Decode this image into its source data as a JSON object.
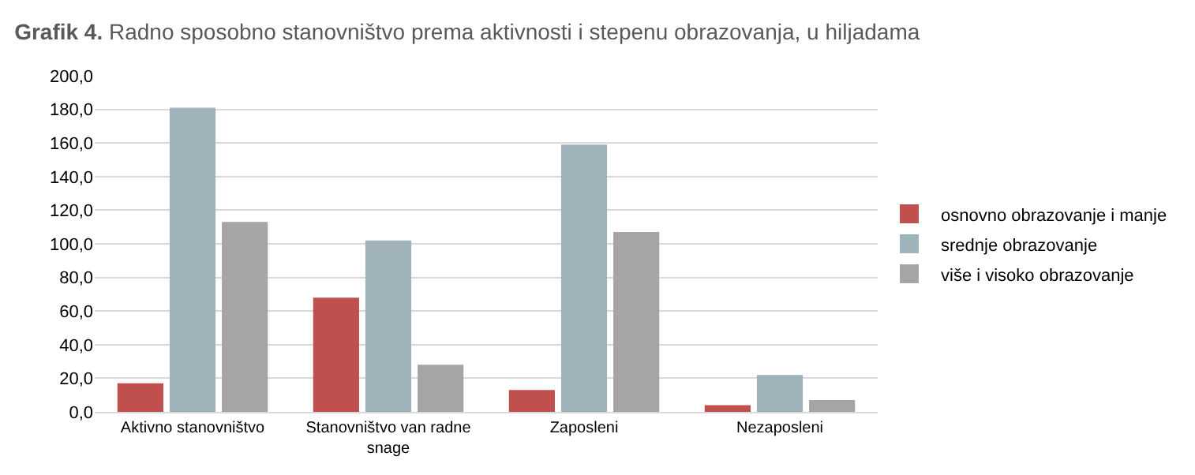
{
  "chart_data": {
    "type": "bar",
    "title": "Grafik 4.",
    "subtitle": "Radno sposobno stanovništvo prema aktivnosti i stepenu obrazovanja, u hiljadama",
    "categories": [
      "Aktivno stanovništvo",
      "Stanovništvo van radne snage",
      "Zaposleni",
      "Nezaposleni"
    ],
    "series": [
      {
        "name": "osnovno obrazovanje i manje",
        "color": "#c0504d",
        "values": [
          17,
          68,
          13,
          4
        ]
      },
      {
        "name": "srednje obrazovanje",
        "color": "#a0b2ba",
        "values": [
          181,
          102,
          159,
          22
        ]
      },
      {
        "name": "više i visoko obrazovanje",
        "color": "#a5a5a5",
        "values": [
          113,
          28,
          107,
          7
        ]
      }
    ],
    "ylim": [
      0,
      200
    ],
    "yticks": [
      {
        "value": 0,
        "label": "0,0"
      },
      {
        "value": 20,
        "label": "20,0"
      },
      {
        "value": 40,
        "label": "40,0"
      },
      {
        "value": 60,
        "label": "60,0"
      },
      {
        "value": 80,
        "label": "80,0"
      },
      {
        "value": 100,
        "label": "100,0"
      },
      {
        "value": 120,
        "label": "120,0"
      },
      {
        "value": 140,
        "label": "140,0"
      },
      {
        "value": 160,
        "label": "160,0"
      },
      {
        "value": 180,
        "label": "180,0"
      },
      {
        "value": 200,
        "label": "200,0"
      }
    ],
    "grid": "y",
    "legend": "right"
  }
}
